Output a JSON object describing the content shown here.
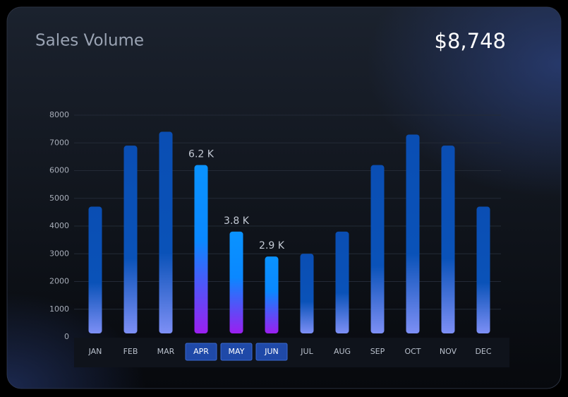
{
  "chart_data": {
    "type": "bar",
    "title": "Sales Volume",
    "headline": "$8,748",
    "categories": [
      "JAN",
      "FEB",
      "MAR",
      "APR",
      "MAY",
      "JUN",
      "JUL",
      "AUG",
      "SEP",
      "OCT",
      "NOV",
      "DEC"
    ],
    "values": [
      4700,
      6900,
      7400,
      6200,
      3800,
      2900,
      3000,
      3800,
      6200,
      7300,
      6900,
      4700
    ],
    "value_labels": [
      null,
      null,
      null,
      "6.2 K",
      "3.8 K",
      "2.9 K",
      null,
      null,
      null,
      null,
      null,
      null
    ],
    "selected": [
      "APR",
      "MAY",
      "JUN"
    ],
    "color": "#0a4eb3",
    "highlight_color": "#0a93ff",
    "ylim": [
      0,
      8000
    ],
    "yticks": [
      0,
      1000,
      2000,
      3000,
      4000,
      5000,
      6000,
      7000,
      8000
    ],
    "grid": true
  }
}
